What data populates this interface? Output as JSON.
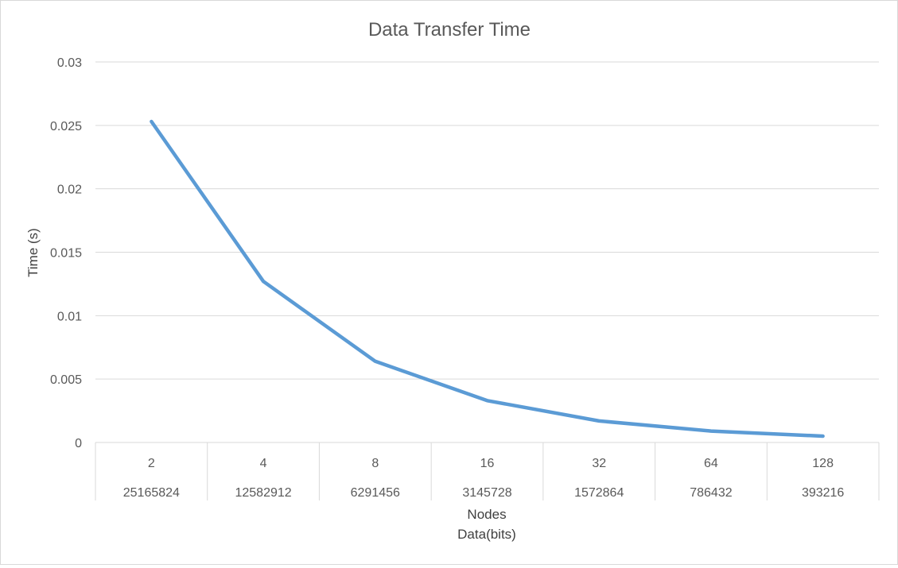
{
  "chart_data": {
    "type": "line",
    "title": "Data Transfer Time",
    "xlabel": "Nodes",
    "xlabel2": "Data(bits)",
    "ylabel": "Time (s)",
    "categories": [
      "2",
      "4",
      "8",
      "16",
      "32",
      "64",
      "128"
    ],
    "categories2": [
      "25165824",
      "12582912",
      "6291456",
      "3145728",
      "1572864",
      "786432",
      "393216"
    ],
    "series": [
      {
        "name": "",
        "color": "#5b9bd5",
        "values": [
          0.0253,
          0.0127,
          0.0064,
          0.0033,
          0.0017,
          0.0009,
          0.0005
        ]
      }
    ],
    "ylim": [
      0,
      0.03
    ],
    "yticks": [
      0,
      0.005,
      0.01,
      0.015,
      0.02,
      0.025,
      0.03
    ],
    "ytick_labels": [
      "0",
      "0.005",
      "0.01",
      "0.015",
      "0.02",
      "0.025",
      "0.03"
    ],
    "grid": true,
    "legend": "none"
  }
}
